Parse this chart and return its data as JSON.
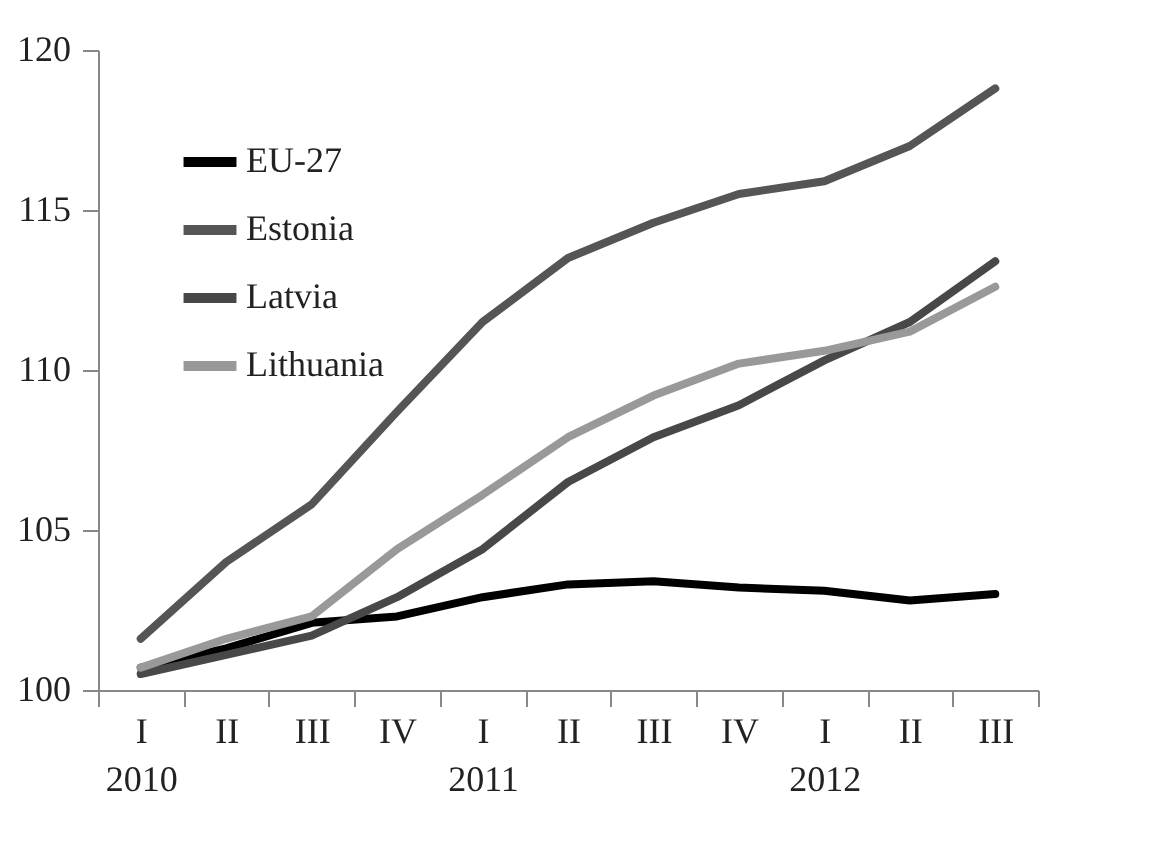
{
  "chart_data": {
    "type": "line",
    "categories": [
      "I\n2010",
      "II",
      "III",
      "IV",
      "I\n2011",
      "II",
      "III",
      "IV",
      "I\n2012",
      "II",
      "III"
    ],
    "series": [
      {
        "name": "EU-27",
        "color": "#000000",
        "values": [
          100.7,
          101.3,
          102.1,
          102.3,
          102.9,
          103.3,
          103.4,
          103.2,
          103.1,
          102.8,
          103.0
        ]
      },
      {
        "name": "Estonia",
        "color": "#555555",
        "values": [
          101.6,
          104.0,
          105.8,
          108.7,
          111.5,
          113.5,
          114.6,
          115.5,
          115.9,
          117.0,
          118.8
        ]
      },
      {
        "name": "Latvia",
        "color": "#484848",
        "values": [
          100.5,
          101.1,
          101.7,
          102.9,
          104.4,
          106.5,
          107.9,
          108.9,
          110.3,
          111.5,
          113.4
        ]
      },
      {
        "name": "Lithuania",
        "color": "#999999",
        "values": [
          100.7,
          101.6,
          102.3,
          104.4,
          106.1,
          107.9,
          109.2,
          110.2,
          110.6,
          111.2,
          112.6
        ]
      }
    ],
    "ylim": [
      100,
      120
    ],
    "yticks": [
      100,
      105,
      110,
      115,
      120
    ],
    "legend": "top left",
    "grid": false
  }
}
